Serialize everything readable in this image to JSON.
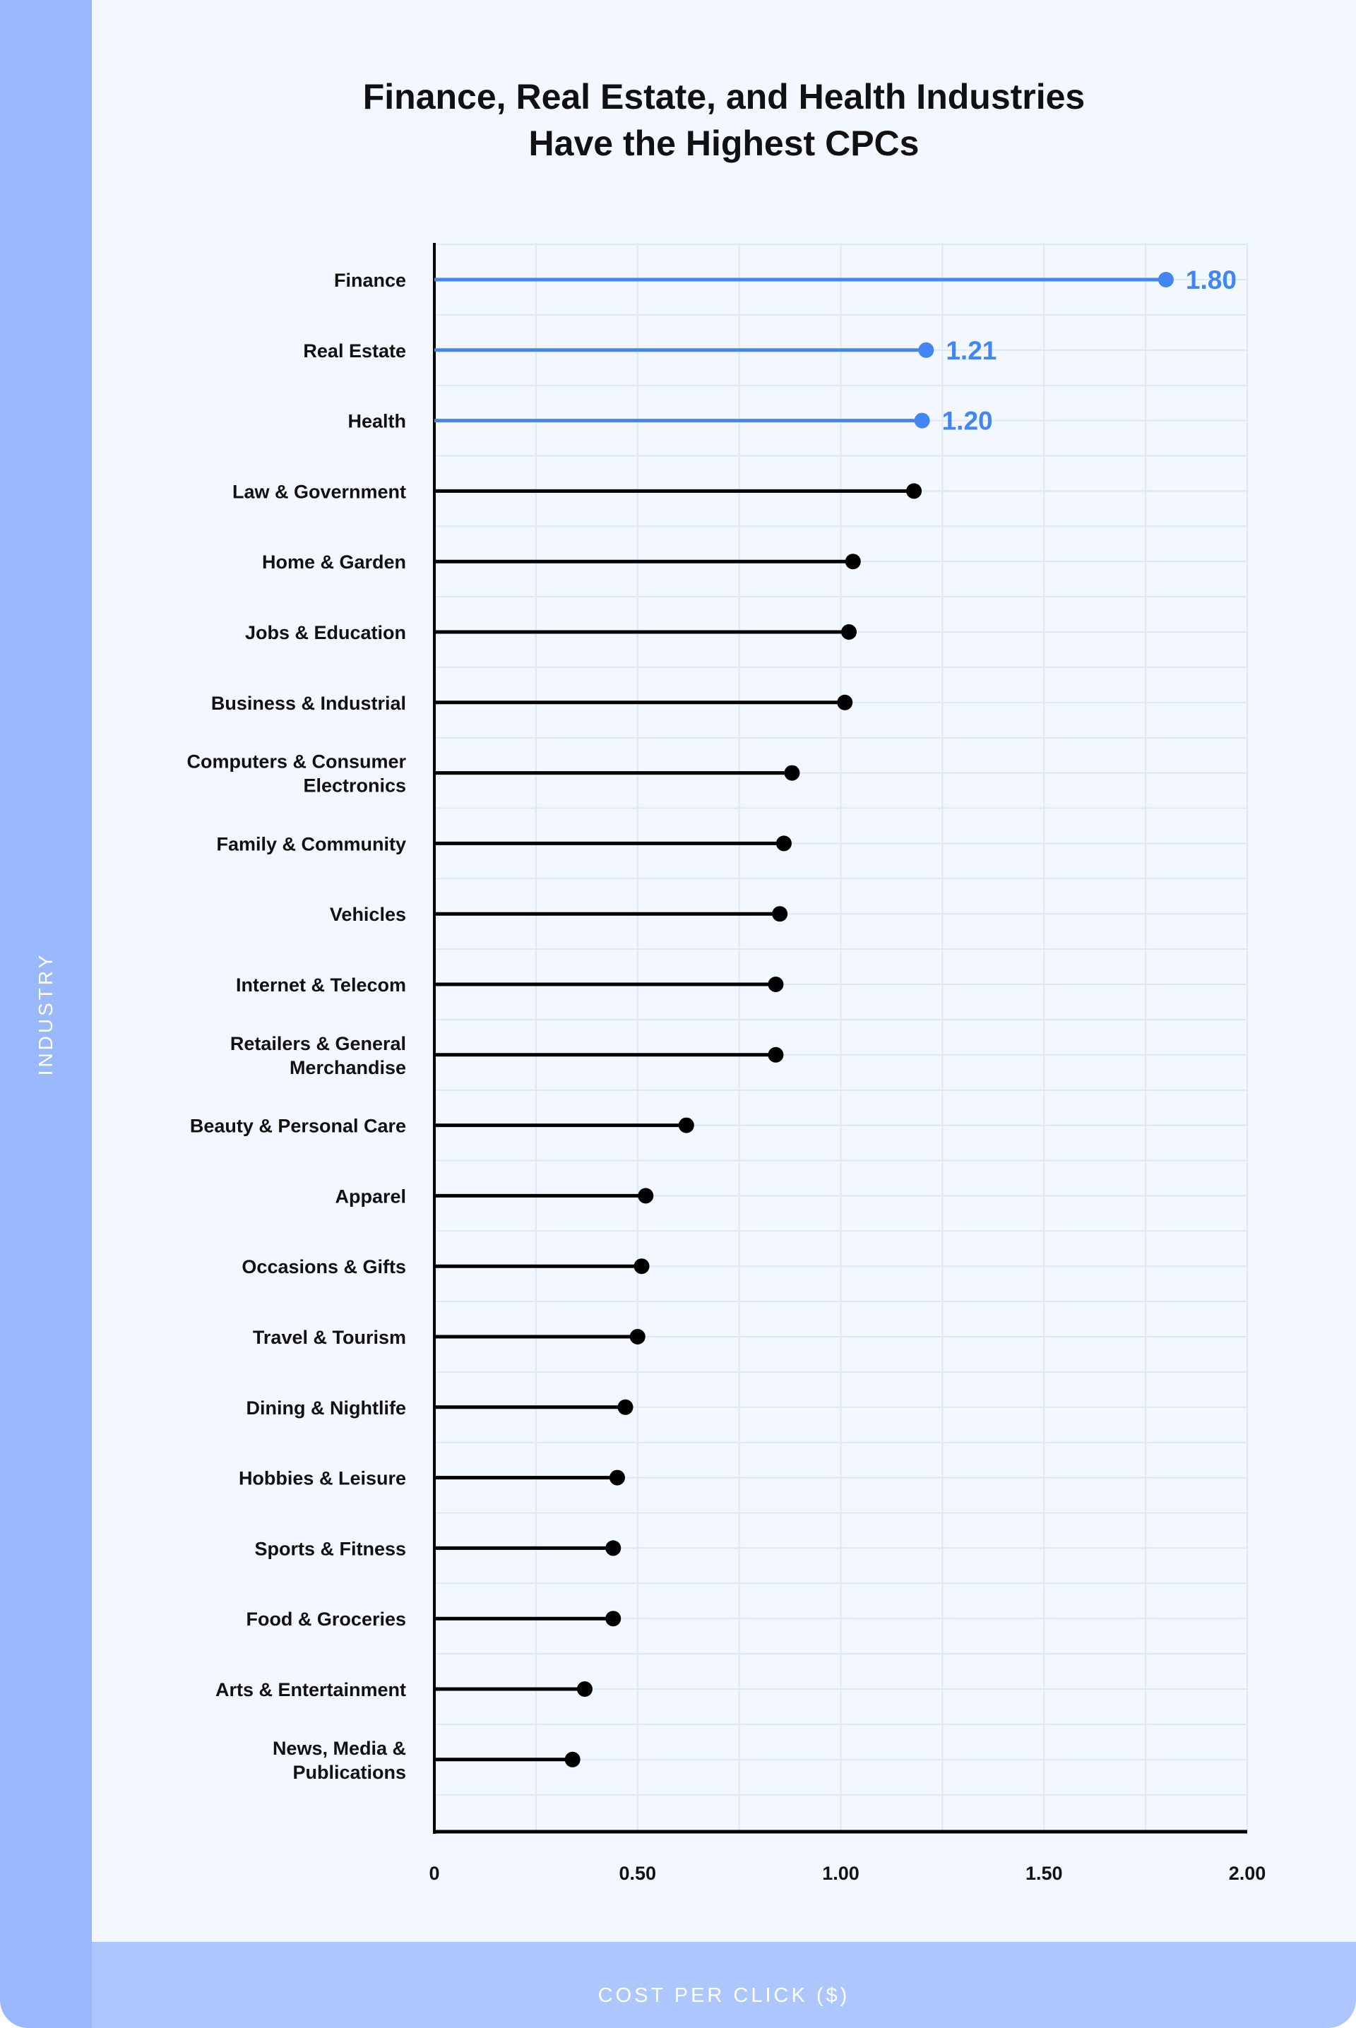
{
  "chart_data": {
    "type": "lollipop-bar",
    "orientation": "horizontal",
    "title": "Finance, Real Estate, and Health Industries Have the Highest CPCs",
    "title_lines": [
      "Finance, Real Estate, and Health Industries",
      "Have the Highest CPCs"
    ],
    "xlabel": "COST PER CLICK ($)",
    "ylabel": "INDUSTRY",
    "xlim": [
      0,
      2.0
    ],
    "xticks": [
      "0",
      "0.50",
      "1.00",
      "1.50",
      "2.00"
    ],
    "grid": true,
    "highlight_color": "#4285f4",
    "default_color": "#000000",
    "categories": [
      {
        "label": [
          "Finance"
        ],
        "value": 1.8,
        "highlight": true,
        "data_label": "1.80"
      },
      {
        "label": [
          "Real Estate"
        ],
        "value": 1.21,
        "highlight": true,
        "data_label": "1.21"
      },
      {
        "label": [
          "Health"
        ],
        "value": 1.2,
        "highlight": true,
        "data_label": "1.20"
      },
      {
        "label": [
          "Law & Government"
        ],
        "value": 1.18
      },
      {
        "label": [
          "Home & Garden"
        ],
        "value": 1.03
      },
      {
        "label": [
          "Jobs & Education"
        ],
        "value": 1.02
      },
      {
        "label": [
          "Business & Industrial"
        ],
        "value": 1.01
      },
      {
        "label": [
          "Computers & Consumer",
          "Electronics"
        ],
        "value": 0.88
      },
      {
        "label": [
          "Family & Community"
        ],
        "value": 0.86
      },
      {
        "label": [
          "Vehicles"
        ],
        "value": 0.85
      },
      {
        "label": [
          "Internet & Telecom"
        ],
        "value": 0.84
      },
      {
        "label": [
          "Retailers & General",
          "Merchandise"
        ],
        "value": 0.84
      },
      {
        "label": [
          "Beauty & Personal Care"
        ],
        "value": 0.62
      },
      {
        "label": [
          "Apparel"
        ],
        "value": 0.52
      },
      {
        "label": [
          "Occasions & Gifts"
        ],
        "value": 0.51
      },
      {
        "label": [
          "Travel & Tourism"
        ],
        "value": 0.5
      },
      {
        "label": [
          "Dining & Nightlife"
        ],
        "value": 0.47
      },
      {
        "label": [
          "Hobbies & Leisure"
        ],
        "value": 0.45
      },
      {
        "label": [
          "Sports & Fitness"
        ],
        "value": 0.44
      },
      {
        "label": [
          "Food & Groceries"
        ],
        "value": 0.44
      },
      {
        "label": [
          "Arts & Entertainment"
        ],
        "value": 0.37
      },
      {
        "label": [
          "News, Media &",
          "Publications"
        ],
        "value": 0.34
      }
    ]
  }
}
